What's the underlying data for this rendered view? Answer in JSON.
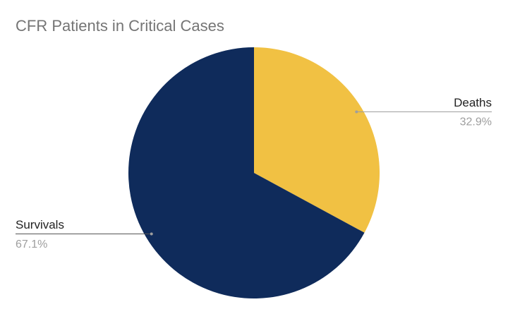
{
  "chart_data": {
    "type": "pie",
    "title": "CFR Patients in Critical Cases",
    "categories": [
      "Deaths",
      "Survivals"
    ],
    "values": [
      32.9,
      67.1
    ],
    "value_labels": [
      "32.9%",
      "67.1%"
    ],
    "colors": [
      "#f1c143",
      "#0f2b5b"
    ]
  }
}
